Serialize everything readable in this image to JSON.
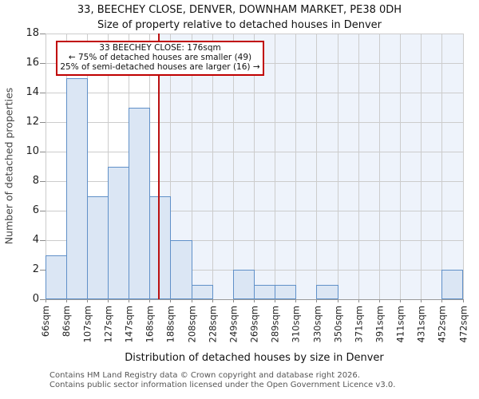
{
  "annotation": {
    "line1": "33 BEECHEY CLOSE: 176sqm",
    "line2": "← 75% of detached houses are smaller (49)",
    "line3": "25% of semi-detached houses are larger (16) →"
  },
  "footer": {
    "line1": "Contains HM Land Registry data © Crown copyright and database right 2026.",
    "line2": "Contains public sector information licensed under the Open Government Licence v3.0."
  },
  "chart_data": {
    "type": "bar",
    "title": "33, BEECHEY CLOSE, DENVER, DOWNHAM MARKET, PE38 0DH",
    "subtitle": "Size of property relative to detached houses in Denver",
    "xlabel": "Distribution of detached houses by size in Denver",
    "ylabel": "Number of detached properties",
    "bin_labels": [
      "66sqm",
      "86sqm",
      "107sqm",
      "127sqm",
      "147sqm",
      "168sqm",
      "188sqm",
      "208sqm",
      "228sqm",
      "249sqm",
      "269sqm",
      "289sqm",
      "310sqm",
      "330sqm",
      "350sqm",
      "371sqm",
      "391sqm",
      "411sqm",
      "431sqm",
      "452sqm",
      "472sqm"
    ],
    "bin_edges_sqm": [
      66,
      86,
      107,
      127,
      147,
      168,
      188,
      208,
      228,
      249,
      269,
      289,
      310,
      330,
      350,
      371,
      391,
      411,
      431,
      452,
      472
    ],
    "values": [
      3,
      15,
      7,
      9,
      13,
      7,
      4,
      1,
      0,
      2,
      1,
      1,
      0,
      1,
      0,
      0,
      0,
      0,
      0,
      2
    ],
    "ylim": [
      0,
      18
    ],
    "yticks": [
      0,
      2,
      4,
      6,
      8,
      10,
      12,
      14,
      16,
      18
    ],
    "grid": true,
    "legend": false,
    "marker": {
      "label": "33 BEECHEY CLOSE",
      "value_sqm": 176
    },
    "colors": {
      "bar_fill": "#dbe6f4",
      "bar_border": "#6090c8",
      "marker_line": "#bb1111",
      "annotation_border": "#c00000",
      "shaded_region": "#eef3fb",
      "grid": "#cccccc"
    }
  }
}
